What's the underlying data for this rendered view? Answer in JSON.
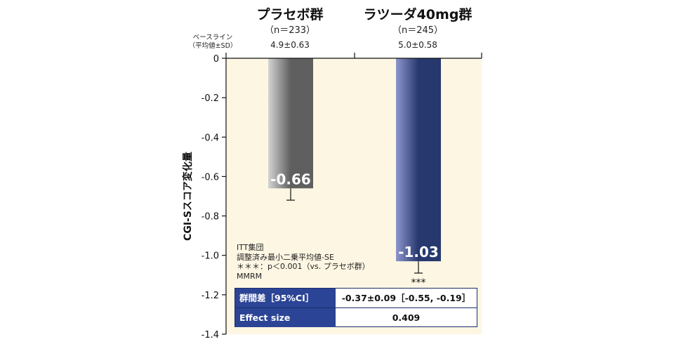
{
  "chart_data": {
    "type": "bar",
    "ylabel": "CGI-Sスコア変化量",
    "ylim": [
      -1.4,
      0
    ],
    "yticks": [
      0,
      -0.2,
      -0.4,
      -0.6,
      -0.8,
      -1.0,
      -1.2,
      -1.4
    ],
    "ytick_labels": [
      "0",
      "-0.2",
      "-0.4",
      "-0.6",
      "-0.8",
      "-1.0",
      "-1.2",
      "-1.4"
    ],
    "categories": [
      "プラセボ群",
      "ラツーダ40mg群"
    ],
    "n_labels": [
      "（n＝233）",
      "（n＝245）"
    ],
    "values": [
      -0.66,
      -1.03
    ],
    "value_labels": [
      "-0.66",
      "-1.03"
    ],
    "error_se": [
      0.06,
      0.06
    ],
    "significance": [
      "",
      "***"
    ],
    "bar_colors": [
      {
        "light": "#d4d4d4",
        "dark": "#5f5f5f"
      },
      {
        "light": "#8d96cc",
        "dark": "#27386f"
      }
    ],
    "baseline": {
      "label_lines": [
        "ベースライン",
        "（平均値±SD）"
      ],
      "values": [
        "4.9±0.63",
        "5.0±0.58"
      ]
    },
    "plot_background": "#fdf6e3",
    "grid": false
  },
  "notes": [
    "ITT集団",
    "調整済み最小二乗平均値-SE",
    "＊＊＊：p＜0.001（vs. プラセボ群）",
    "MMRM"
  ],
  "stats_table": [
    {
      "label": "群間差［95%CI］",
      "value": "-0.37±0.09［-0.55, -0.19］"
    },
    {
      "label": "Effect size",
      "value": "0.409"
    }
  ]
}
